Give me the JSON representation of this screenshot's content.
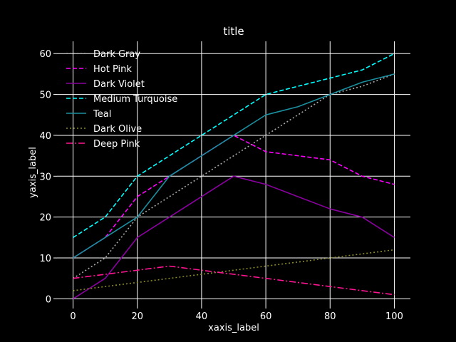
{
  "colors": {
    "background": "#000000",
    "grid": "#ffffff",
    "text": "#ffffff"
  },
  "chart_data": {
    "type": "line",
    "title": "title",
    "xlabel": "xaxis_label",
    "ylabel": "yaxis_label",
    "xlim": [
      -5,
      105
    ],
    "ylim": [
      -1.5,
      63
    ],
    "xticks": [
      0,
      20,
      40,
      60,
      80,
      100
    ],
    "yticks": [
      0,
      10,
      20,
      30,
      40,
      50,
      60
    ],
    "grid": true,
    "legend_position": "top-left",
    "series": [
      {
        "name": "Dark Gray",
        "color": "#a9a9a9",
        "style": "dotted",
        "x": [
          0,
          10,
          20,
          30,
          40,
          50,
          60,
          70,
          80,
          90,
          100
        ],
        "y": [
          5,
          10,
          20,
          25,
          30,
          35,
          40,
          45,
          50,
          52,
          55
        ]
      },
      {
        "name": "Hot Pink",
        "color": "#ff00ff",
        "style": "dashed",
        "x": [
          0,
          10,
          20,
          30,
          40,
          50,
          60,
          70,
          80,
          90,
          100
        ],
        "y": [
          10,
          15,
          25,
          30,
          35,
          40,
          36,
          35,
          34,
          30,
          28
        ]
      },
      {
        "name": "Dark Violet",
        "color": "#8b00a0",
        "style": "solid",
        "x": [
          0,
          10,
          20,
          30,
          40,
          50,
          60,
          70,
          80,
          90,
          100
        ],
        "y": [
          0,
          5,
          15,
          20,
          25,
          30,
          28,
          25,
          22,
          20,
          15
        ]
      },
      {
        "name": "Medium Turquoise",
        "color": "#00ffff",
        "style": "dashed",
        "x": [
          0,
          10,
          20,
          30,
          40,
          50,
          60,
          70,
          80,
          90,
          100
        ],
        "y": [
          15,
          20,
          30,
          35,
          40,
          45,
          50,
          52,
          54,
          56,
          60
        ]
      },
      {
        "name": "Teal",
        "color": "#1a8fa0",
        "style": "solid",
        "x": [
          0,
          10,
          20,
          30,
          40,
          50,
          60,
          70,
          80,
          90,
          100
        ],
        "y": [
          10,
          15,
          20,
          30,
          35,
          40,
          45,
          47,
          50,
          53,
          55
        ]
      },
      {
        "name": "Dark Olive",
        "color": "#8a8a2a",
        "style": "dotted",
        "x": [
          0,
          10,
          20,
          30,
          40,
          50,
          60,
          70,
          80,
          90,
          100
        ],
        "y": [
          2,
          3,
          4,
          5,
          6,
          7,
          8,
          9,
          10,
          11,
          12
        ]
      },
      {
        "name": "Deep Pink",
        "color": "#ff1493",
        "style": "dashdot",
        "x": [
          0,
          10,
          20,
          30,
          40,
          50,
          60,
          70,
          80,
          90,
          100
        ],
        "y": [
          5,
          6,
          7,
          8,
          7,
          6,
          5,
          4,
          3,
          2,
          1
        ]
      }
    ]
  }
}
